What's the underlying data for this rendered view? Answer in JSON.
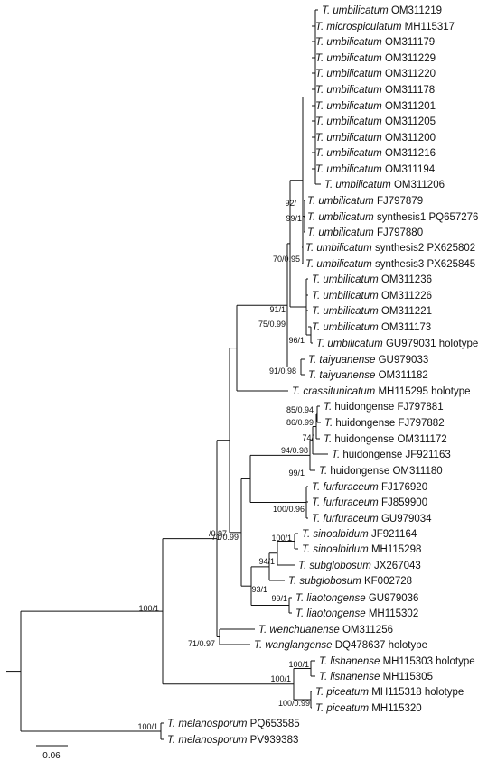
{
  "tree": {
    "taxa": [
      {
        "id": "t01",
        "genus": "T.",
        "epithet": "umbilicatum",
        "accession": "OM311219"
      },
      {
        "id": "t02",
        "genus": "T.",
        "epithet": "microspiculatum",
        "accession": "MH115317"
      },
      {
        "id": "t03",
        "genus": "T.",
        "epithet": "umbilicatum",
        "accession": "OM311179"
      },
      {
        "id": "t04",
        "genus": "T.",
        "epithet": "umbilicatum",
        "accession": "OM311229"
      },
      {
        "id": "t05",
        "genus": "T.",
        "epithet": "umbilicatum",
        "accession": "OM311220"
      },
      {
        "id": "t06",
        "genus": "T.",
        "epithet": "umbilicatum",
        "accession": "OM311178"
      },
      {
        "id": "t07",
        "genus": "T.",
        "epithet": "umbilicatum",
        "accession": "OM311201"
      },
      {
        "id": "t08",
        "genus": "T.",
        "epithet": "umbilicatum",
        "accession": "OM311205"
      },
      {
        "id": "t09",
        "genus": "T.",
        "epithet": "umbilicatum",
        "accession": "OM311200"
      },
      {
        "id": "t10",
        "genus": "T.",
        "epithet": "umbilicatum",
        "accession": "OM311216"
      },
      {
        "id": "t11",
        "genus": "T.",
        "epithet": "umbilicatum",
        "accession": "OM311194"
      },
      {
        "id": "t12",
        "genus": "T.",
        "epithet": "umbilicatum",
        "accession": "OM311206"
      },
      {
        "id": "t13",
        "genus": "T.",
        "epithet": "umbilicatum",
        "accession": "FJ797879"
      },
      {
        "id": "t14",
        "genus": "T.",
        "epithet": "umbilicatum",
        "accession": "synthesis1 PQ657276"
      },
      {
        "id": "t15",
        "genus": "T.",
        "epithet": "umbilicatum",
        "accession": "FJ797880"
      },
      {
        "id": "t16",
        "genus": "T.",
        "epithet": "umbilicatum",
        "accession": "synthesis2 PX625802"
      },
      {
        "id": "t17",
        "genus": "T.",
        "epithet": "umbilicatum",
        "accession": "synthesis3 PX625845"
      },
      {
        "id": "t18",
        "genus": "T.",
        "epithet": "umbilicatum",
        "accession": "OM311236"
      },
      {
        "id": "t19",
        "genus": "T.",
        "epithet": "umbilicatum",
        "accession": "OM311226"
      },
      {
        "id": "t20",
        "genus": "T.",
        "epithet": "umbilicatum",
        "accession": "OM311221"
      },
      {
        "id": "t21",
        "genus": "T.",
        "epithet": "umbilicatum",
        "accession": "OM311173"
      },
      {
        "id": "t22",
        "genus": "T.",
        "epithet": "umbilicatum",
        "accession": "GU979031 holotype"
      },
      {
        "id": "t23",
        "genus": "T.",
        "epithet": "taiyuanense",
        "accession": "GU979033"
      },
      {
        "id": "t24",
        "genus": "T.",
        "epithet": "taiyuanense",
        "accession": "OM311182"
      },
      {
        "id": "t25",
        "genus": "T.",
        "epithet": "crassitunicatum",
        "accession": "MH115295 holotype"
      },
      {
        "id": "t26",
        "genus": "T.",
        "epithet": "huidongense",
        "accession": "FJ797881",
        "roman": true
      },
      {
        "id": "t27",
        "genus": "T.",
        "epithet": "huidongense",
        "accession": "FJ797882",
        "roman": true
      },
      {
        "id": "t28",
        "genus": "T.",
        "epithet": "huidongense",
        "accession": "OM311172",
        "roman": true
      },
      {
        "id": "t29",
        "genus": "T.",
        "epithet": "huidongense",
        "accession": "JF921163",
        "roman": true
      },
      {
        "id": "t30",
        "genus": "T.",
        "epithet": "huidongense",
        "accession": "OM311180",
        "roman": true
      },
      {
        "id": "t31",
        "genus": "T.",
        "epithet": "furfuraceum",
        "accession": "FJ176920"
      },
      {
        "id": "t32",
        "genus": "T.",
        "epithet": "furfuraceum",
        "accession": "FJ859900"
      },
      {
        "id": "t33",
        "genus": "T.",
        "epithet": "furfuraceum",
        "accession": "GU979034"
      },
      {
        "id": "t34",
        "genus": "T.",
        "epithet": "sinoalbidum",
        "accession": "JF921164"
      },
      {
        "id": "t35",
        "genus": "T.",
        "epithet": "sinoalbidum",
        "accession": "MH115298"
      },
      {
        "id": "t36",
        "genus": "T.",
        "epithet": "subglobosum",
        "accession": "JX267043"
      },
      {
        "id": "t37",
        "genus": "T.",
        "epithet": "subglobosum",
        "accession": "KF002728"
      },
      {
        "id": "t38",
        "genus": "T.",
        "epithet": "liaotongense",
        "accession": "GU979036"
      },
      {
        "id": "t39",
        "genus": "T.",
        "epithet": "liaotongense",
        "accession": "MH115302"
      },
      {
        "id": "t40",
        "genus": "T.",
        "epithet": "wenchuanense",
        "accession": "OM311256"
      },
      {
        "id": "t41",
        "genus": "T.",
        "epithet": "wanglangense",
        "accession": "DQ478637 holotype"
      },
      {
        "id": "t42",
        "genus": "T.",
        "epithet": "lishanense",
        "accession": "MH115303 holotype"
      },
      {
        "id": "t43",
        "genus": "T.",
        "epithet": "lishanense",
        "accession": "MH115305"
      },
      {
        "id": "t44",
        "genus": "T.",
        "epithet": "piceatum",
        "accession": "MH115318 holotype"
      },
      {
        "id": "t45",
        "genus": "T.",
        "epithet": "piceatum",
        "accession": "MH115320"
      },
      {
        "id": "t46",
        "genus": "T.",
        "epithet": "melanosporum",
        "accession": "PQ653585"
      },
      {
        "id": "t47",
        "genus": "T.",
        "epithet": "melanosporum",
        "accession": "PV939383"
      }
    ],
    "supports": [
      {
        "id": "s01",
        "text": "92/"
      },
      {
        "id": "s02",
        "text": "99/1"
      },
      {
        "id": "s03",
        "text": "70/0.95"
      },
      {
        "id": "s04",
        "text": "91/1"
      },
      {
        "id": "s05",
        "text": "75/0.99"
      },
      {
        "id": "s06",
        "text": "96/1"
      },
      {
        "id": "s07",
        "text": "91/0.98"
      },
      {
        "id": "s08",
        "text": "85/0.94"
      },
      {
        "id": "s09",
        "text": "86/0.99"
      },
      {
        "id": "s10",
        "text": "74/"
      },
      {
        "id": "s11",
        "text": "94/0.98"
      },
      {
        "id": "s12",
        "text": "99/1"
      },
      {
        "id": "s13",
        "text": "100/0.96"
      },
      {
        "id": "s14",
        "text": "/0.97"
      },
      {
        "id": "s15",
        "text": "71/0.99"
      },
      {
        "id": "s16",
        "text": "100/1"
      },
      {
        "id": "s17",
        "text": "94/1"
      },
      {
        "id": "s18",
        "text": "93/1"
      },
      {
        "id": "s19",
        "text": "99/1"
      },
      {
        "id": "s20",
        "text": "100/1"
      },
      {
        "id": "s21",
        "text": "71/0.97"
      },
      {
        "id": "s22",
        "text": "100/1"
      },
      {
        "id": "s23",
        "text": "100/1"
      },
      {
        "id": "s24",
        "text": "100/0.99"
      },
      {
        "id": "s25",
        "text": "100/1"
      }
    ],
    "scale_bar": {
      "label": "0.06"
    },
    "line_color": "#111111"
  }
}
